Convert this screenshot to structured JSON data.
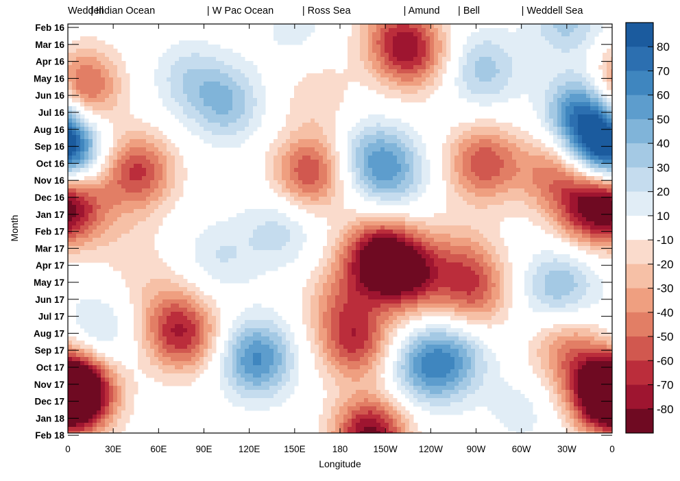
{
  "chart_data": {
    "type": "heatmap",
    "xlabel": "Longitude",
    "ylabel": "Month",
    "x_ticks": [
      "0",
      "30E",
      "60E",
      "90E",
      "120E",
      "150E",
      "180",
      "150W",
      "120W",
      "90W",
      "60W",
      "30W",
      "0"
    ],
    "x_tick_degrees_east": [
      0,
      30,
      60,
      90,
      120,
      150,
      180,
      210,
      240,
      270,
      300,
      330,
      360
    ],
    "xlim_degrees_east": [
      0,
      360
    ],
    "y_ticks": [
      "Feb 16",
      "Mar 16",
      "Apr 16",
      "May 16",
      "Jun 16",
      "Jul 16",
      "Aug 16",
      "Sep 16",
      "Oct 16",
      "Nov 16",
      "Dec 16",
      "Jan 17",
      "Feb 17",
      "Mar 17",
      "Apr 17",
      "May 17",
      "Jun 17",
      "Jul 17",
      "Aug 17",
      "Sep 17",
      "Oct 17",
      "Nov 17",
      "Dec 17",
      "Jan 18",
      "Feb 18"
    ],
    "sectors": [
      {
        "label": "Weddell",
        "lon_start": 0
      },
      {
        "label": "| Indian Ocean",
        "lon_start": 15
      },
      {
        "label": "| W Pac Ocean",
        "lon_start": 92
      },
      {
        "label": "| Ross Sea",
        "lon_start": 155
      },
      {
        "label": "| Amund",
        "lon_start": 222
      },
      {
        "label": "| Bell",
        "lon_start": 258
      },
      {
        "label": "| Weddell Sea",
        "lon_start": 300
      }
    ],
    "colorbar": {
      "labels": [
        "80",
        "70",
        "60",
        "50",
        "40",
        "30",
        "20",
        "10",
        "-10",
        "-20",
        "-30",
        "-40",
        "-50",
        "-60",
        "-70",
        "-80"
      ],
      "bins": [
        {
          "lo": 80,
          "hi": 90,
          "color": "#1b5b9e"
        },
        {
          "lo": 70,
          "hi": 80,
          "color": "#2c6fb0"
        },
        {
          "lo": 60,
          "hi": 70,
          "color": "#3f86bf"
        },
        {
          "lo": 50,
          "hi": 60,
          "color": "#5d9dcd"
        },
        {
          "lo": 40,
          "hi": 50,
          "color": "#80b4d9"
        },
        {
          "lo": 30,
          "hi": 40,
          "color": "#a4c9e4"
        },
        {
          "lo": 20,
          "hi": 30,
          "color": "#c5dcee"
        },
        {
          "lo": 10,
          "hi": 20,
          "color": "#e1edf6"
        },
        {
          "lo": -10,
          "hi": 10,
          "color": "#ffffff"
        },
        {
          "lo": -20,
          "hi": -10,
          "color": "#fadbcc"
        },
        {
          "lo": -30,
          "hi": -20,
          "color": "#f6c0a6"
        },
        {
          "lo": -40,
          "hi": -30,
          "color": "#ef9f80"
        },
        {
          "lo": -50,
          "hi": -40,
          "color": "#e27e65"
        },
        {
          "lo": -60,
          "hi": -50,
          "color": "#d1584f"
        },
        {
          "lo": -70,
          "hi": -60,
          "color": "#bb2d3b"
        },
        {
          "lo": -80,
          "hi": -70,
          "color": "#9e1530"
        },
        {
          "lo": -90,
          "hi": -80,
          "color": "#6f0a22"
        }
      ]
    },
    "anomaly_centers": [
      {
        "lon": 10,
        "month": 3.5,
        "value": -60
      },
      {
        "lon": 0,
        "month": 7.5,
        "value": 40
      },
      {
        "lon": 5,
        "month": 10.5,
        "value": -55
      },
      {
        "lon": 46,
        "month": 8.5,
        "value": -62
      },
      {
        "lon": 80,
        "month": 3,
        "value": 25
      },
      {
        "lon": 105,
        "month": 4.5,
        "value": 38
      },
      {
        "lon": 150,
        "month": 0,
        "value": 15
      },
      {
        "lon": 140,
        "month": 12,
        "value": 25
      },
      {
        "lon": 100,
        "month": 13.5,
        "value": 20
      },
      {
        "lon": 165,
        "month": 4,
        "value": -18
      },
      {
        "lon": 160,
        "month": 8.5,
        "value": -60
      },
      {
        "lon": 205,
        "month": 13.5,
        "value": -82
      },
      {
        "lon": 225,
        "month": 14.5,
        "value": -72
      },
      {
        "lon": 215,
        "month": 0.5,
        "value": -35
      },
      {
        "lon": 228,
        "month": 1.5,
        "value": -55
      },
      {
        "lon": 198,
        "month": 7.5,
        "value": 28
      },
      {
        "lon": 214,
        "month": 8.5,
        "value": 42
      },
      {
        "lon": 275,
        "month": 2.5,
        "value": 35
      },
      {
        "lon": 275,
        "month": 8,
        "value": -58
      },
      {
        "lon": 340,
        "month": 5,
        "value": 65
      },
      {
        "lon": 355,
        "month": 7,
        "value": 60
      },
      {
        "lon": 330,
        "month": -0.5,
        "value": 35
      },
      {
        "lon": 345,
        "month": 10.5,
        "value": -70
      },
      {
        "lon": 320,
        "month": 8.5,
        "value": -40
      },
      {
        "lon": 330,
        "month": 15,
        "value": 22
      },
      {
        "lon": 268,
        "month": 15.5,
        "value": -50
      },
      {
        "lon": 260,
        "month": 13.5,
        "value": -25
      },
      {
        "lon": 8,
        "month": 21.5,
        "value": -88
      },
      {
        "lon": 20,
        "month": 18,
        "value": 25
      },
      {
        "lon": 75,
        "month": 18,
        "value": -68
      },
      {
        "lon": 125,
        "month": 19.5,
        "value": 62
      },
      {
        "lon": 190,
        "month": 18.5,
        "value": -60
      },
      {
        "lon": 200,
        "month": 24,
        "value": -85
      },
      {
        "lon": 180,
        "month": 16,
        "value": -30
      },
      {
        "lon": 235,
        "month": 20,
        "value": 45
      },
      {
        "lon": 255,
        "month": 19.5,
        "value": 40
      },
      {
        "lon": 355,
        "month": 21.5,
        "value": -88
      },
      {
        "lon": 330,
        "month": 19,
        "value": -40
      },
      {
        "lon": 320,
        "month": 15.5,
        "value": 20
      },
      {
        "lon": 300,
        "month": 22.5,
        "value": 15
      },
      {
        "lon": 40,
        "month": 13,
        "value": -12
      },
      {
        "lon": 60,
        "month": 16,
        "value": -15
      }
    ]
  }
}
